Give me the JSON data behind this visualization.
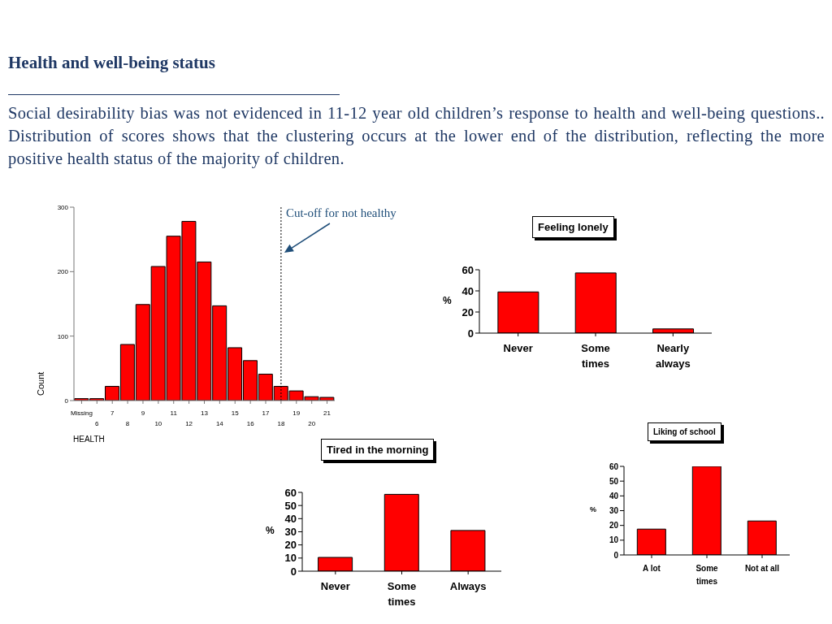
{
  "chart_data": [
    {
      "type": "other",
      "title": "Health and well-being status",
      "subtitle": "Social desirability bias was not evidenced in 11-12 year old children’s response to health and well-being questions.. Distribution of scores shows that the clustering occurs at the lower end of the distribution, reflecting the more positive health status of the majority of children."
    },
    {
      "type": "bar",
      "categories": [
        "Missing",
        "6",
        "7",
        "8",
        "9",
        "10",
        "11",
        "12",
        "13",
        "14",
        "15",
        "16",
        "17",
        "18",
        "19",
        "20",
        "21"
      ],
      "values": [
        3,
        3,
        22,
        87,
        149,
        208,
        255,
        278,
        215,
        147,
        82,
        62,
        41,
        22,
        15,
        6,
        5
      ],
      "color": "#ff0000",
      "ylim": [
        0,
        300
      ],
      "yticks": [
        0,
        100,
        200,
        300
      ],
      "xlabel": "HEALTH",
      "ylabel": "Count",
      "ref_lines": [
        {
          "axis": "x",
          "value": "18",
          "label": "Cut-off for not healthy",
          "line_style": "dotted"
        }
      ]
    },
    {
      "type": "bar",
      "title": "Feeling lonely",
      "categories": [
        "Never",
        "Some times",
        "Nearly always"
      ],
      "values": [
        39,
        57,
        4
      ],
      "color": "#ff0000",
      "ylim": [
        0,
        60
      ],
      "yticks": [
        0,
        20,
        40,
        60
      ],
      "ylabel": "%"
    },
    {
      "type": "bar",
      "title": "Tired in the morning",
      "categories": [
        "Never",
        "Some times",
        "Always"
      ],
      "values": [
        10.5,
        58.5,
        31
      ],
      "color": "#ff0000",
      "ylim": [
        0,
        60
      ],
      "yticks": [
        0,
        10,
        20,
        30,
        40,
        50,
        60
      ],
      "ylabel": "%"
    },
    {
      "type": "bar",
      "title": "Liking of school",
      "categories": [
        "A lot",
        "Some times",
        "Not at all"
      ],
      "values": [
        17.5,
        60,
        23
      ],
      "color": "#ff0000",
      "ylim": [
        0,
        60
      ],
      "yticks": [
        0,
        10,
        20,
        30,
        40,
        50,
        60
      ],
      "ylabel": "%"
    }
  ]
}
